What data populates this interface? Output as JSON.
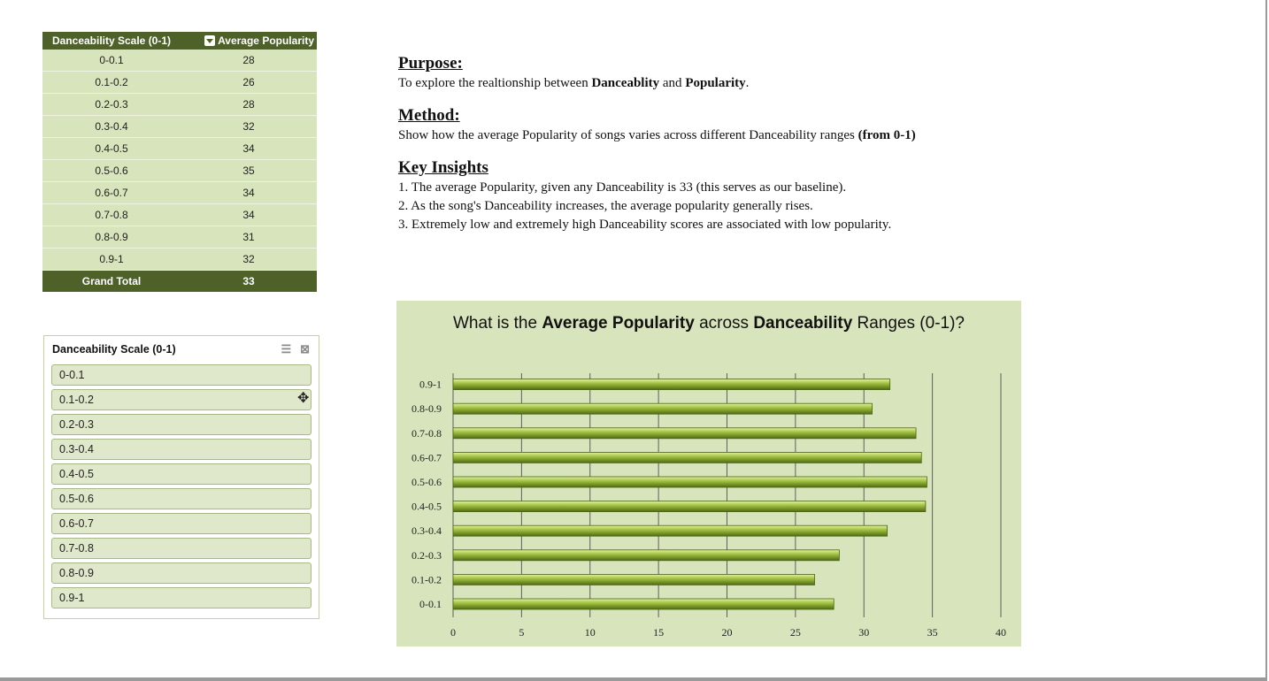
{
  "pivot": {
    "header_col1": "Danceability Scale (0-1)",
    "header_col2": "Average Popularity",
    "rows": [
      {
        "range": "0-0.1",
        "value": "28"
      },
      {
        "range": "0.1-0.2",
        "value": "26"
      },
      {
        "range": "0.2-0.3",
        "value": "28"
      },
      {
        "range": "0.3-0.4",
        "value": "32"
      },
      {
        "range": "0.4-0.5",
        "value": "34"
      },
      {
        "range": "0.5-0.6",
        "value": "35"
      },
      {
        "range": "0.6-0.7",
        "value": "34"
      },
      {
        "range": "0.7-0.8",
        "value": "34"
      },
      {
        "range": "0.8-0.9",
        "value": "31"
      },
      {
        "range": "0.9-1",
        "value": "32"
      }
    ],
    "total_label": "Grand Total",
    "total_value": "33",
    "colors": {
      "header": "#4e6128",
      "row": "#d7e4bc"
    }
  },
  "slicer": {
    "title": "Danceability Scale (0-1)",
    "icons": [
      "multi-select-icon",
      "clear-filter-icon"
    ],
    "items": [
      "0-0.1",
      "0.1-0.2",
      "0.2-0.3",
      "0.3-0.4",
      "0.4-0.5",
      "0.5-0.6",
      "0.6-0.7",
      "0.7-0.8",
      "0.8-0.9",
      "0.9-1"
    ]
  },
  "notes": {
    "purpose_heading": "Purpose:",
    "purpose_text_a": "To explore the realtionship between ",
    "purpose_bold_1": "Danceablity",
    "purpose_text_b": " and ",
    "purpose_bold_2": "Popularity",
    "purpose_text_c": ".",
    "method_heading": "Method:",
    "method_text": "Show how the average Popularity of songs varies across different Danceability ranges ",
    "method_bold": "(from 0-1)",
    "insights_heading": "Key Insights",
    "insights": [
      "1. The average Popularity, given any Danceability is 33 (this serves as our baseline).",
      "2. As the song's Danceability increases, the average popularity generally rises.",
      "3. Extremely low and extremely high Danceability scores are associated with low popularity."
    ]
  },
  "chart_data": {
    "type": "bar",
    "orientation": "horizontal",
    "title_parts": [
      {
        "text": "What is the ",
        "bold": false
      },
      {
        "text": "Average Popularity",
        "bold": true
      },
      {
        "text": " across ",
        "bold": false
      },
      {
        "text": "Danceability",
        "bold": true
      },
      {
        "text": " Ranges (0-1)?",
        "bold": false
      }
    ],
    "categories": [
      "0-0.1",
      "0.1-0.2",
      "0.2-0.3",
      "0.3-0.4",
      "0.4-0.5",
      "0.5-0.6",
      "0.6-0.7",
      "0.7-0.8",
      "0.8-0.9",
      "0.9-1"
    ],
    "values": [
      27.8,
      26.4,
      28.2,
      31.7,
      34.5,
      34.6,
      34.2,
      33.8,
      30.6,
      31.9
    ],
    "xlim": [
      0,
      40
    ],
    "xticks": [
      "0",
      "5",
      "10",
      "15",
      "20",
      "25",
      "30",
      "35",
      "40"
    ],
    "grid": true,
    "bar_color": "#9bbb3c",
    "background": "#d7e4bc"
  }
}
